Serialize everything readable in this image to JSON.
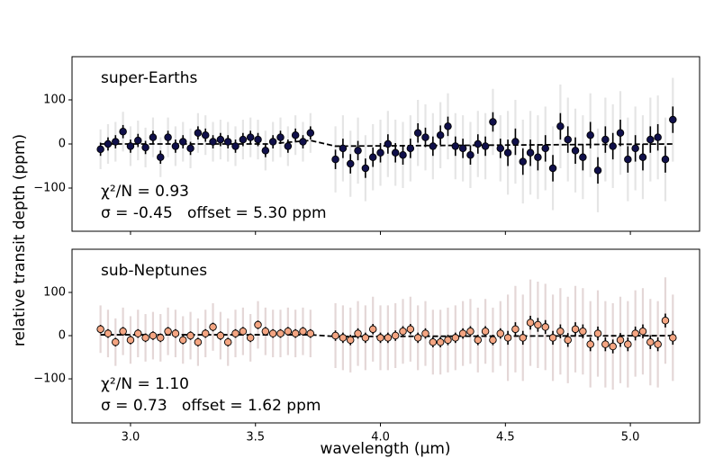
{
  "xlabel": "wavelength (µm)",
  "ylabel": "relative transit depth (ppm)",
  "chart_data": [
    {
      "type": "scatter",
      "label": "super-Earths",
      "stat1": "χ²/N = 0.93",
      "stat2": "σ = -0.45   offset = 5.30 ppm",
      "color": "#10104a",
      "wide_color": "#dddddd",
      "xlim": [
        2.766,
        5.277
      ],
      "ylim": [
        -198,
        198
      ],
      "xticks": [
        {
          "value": 3.0,
          "label": "3.0"
        },
        {
          "value": 3.5,
          "label": "3.5"
        },
        {
          "value": 4.0,
          "label": "4.0"
        },
        {
          "value": 4.5,
          "label": "4.5"
        },
        {
          "value": 5.0,
          "label": "5.0"
        }
      ],
      "yticks": [
        {
          "value": -100,
          "label": "−100"
        },
        0,
        100
      ],
      "x": [
        2.88,
        2.91,
        2.94,
        2.97,
        3.0,
        3.03,
        3.06,
        3.09,
        3.12,
        3.15,
        3.18,
        3.21,
        3.24,
        3.27,
        3.3,
        3.33,
        3.36,
        3.39,
        3.42,
        3.45,
        3.48,
        3.51,
        3.54,
        3.57,
        3.6,
        3.63,
        3.66,
        3.69,
        3.72,
        3.82,
        3.85,
        3.88,
        3.91,
        3.94,
        3.97,
        4.0,
        4.03,
        4.06,
        4.09,
        4.12,
        4.15,
        4.18,
        4.21,
        4.24,
        4.27,
        4.3,
        4.33,
        4.36,
        4.39,
        4.42,
        4.45,
        4.48,
        4.51,
        4.54,
        4.57,
        4.6,
        4.63,
        4.66,
        4.69,
        4.72,
        4.75,
        4.78,
        4.81,
        4.84,
        4.87,
        4.9,
        4.93,
        4.96,
        4.99,
        5.02,
        5.05,
        5.08,
        5.11,
        5.14,
        5.17
      ],
      "values": [
        -12,
        0,
        5,
        28,
        -5,
        8,
        -8,
        15,
        -30,
        15,
        -5,
        5,
        -10,
        25,
        20,
        5,
        10,
        5,
        -5,
        10,
        15,
        10,
        -15,
        5,
        15,
        -5,
        20,
        5,
        25,
        -35,
        -10,
        -45,
        -15,
        -55,
        -30,
        -20,
        0,
        -20,
        -25,
        -10,
        25,
        15,
        -5,
        20,
        40,
        -5,
        -10,
        -25,
        0,
        -5,
        50,
        -10,
        -20,
        5,
        -40,
        -20,
        -30,
        -10,
        -55,
        40,
        10,
        -15,
        -30,
        20,
        -60,
        10,
        -5,
        25,
        -35,
        -10,
        -30,
        10,
        15,
        -35,
        55
      ],
      "errors": [
        15,
        15,
        15,
        15,
        15,
        15,
        15,
        15,
        15,
        15,
        15,
        15,
        15,
        15,
        15,
        15,
        15,
        15,
        15,
        15,
        15,
        15,
        15,
        15,
        15,
        15,
        15,
        15,
        15,
        22,
        22,
        22,
        22,
        22,
        22,
        22,
        22,
        22,
        22,
        22,
        22,
        22,
        22,
        22,
        22,
        22,
        22,
        22,
        22,
        22,
        22,
        22,
        30,
        30,
        30,
        30,
        30,
        30,
        30,
        30,
        30,
        30,
        30,
        30,
        30,
        30,
        30,
        30,
        30,
        30,
        30,
        30,
        30,
        30,
        30
      ],
      "wide_errors": [
        45,
        45,
        45,
        45,
        45,
        45,
        45,
        45,
        45,
        45,
        45,
        45,
        45,
        45,
        45,
        45,
        45,
        45,
        45,
        45,
        45,
        45,
        45,
        45,
        45,
        45,
        45,
        45,
        45,
        75,
        75,
        75,
        75,
        75,
        75,
        75,
        75,
        75,
        75,
        75,
        75,
        75,
        75,
        75,
        75,
        75,
        75,
        75,
        75,
        75,
        75,
        75,
        95,
        95,
        95,
        95,
        95,
        95,
        95,
        95,
        95,
        95,
        95,
        95,
        95,
        95,
        95,
        95,
        95,
        95,
        95,
        95,
        95,
        95,
        95
      ],
      "model_x": [
        2.88,
        3.55,
        3.72,
        3.82,
        5.17
      ],
      "model_y": [
        0,
        0,
        8,
        -5,
        0
      ]
    },
    {
      "type": "scatter",
      "label": "sub-Neptunes",
      "stat1": "χ²/N = 1.10",
      "stat2": "σ = 0.73   offset = 1.62 ppm",
      "color": "#f4a582",
      "wide_color": "#dccaca",
      "xlim": [
        2.766,
        5.277
      ],
      "ylim": [
        -202,
        200
      ],
      "xticks": [
        {
          "value": 3.0,
          "label": "3.0"
        },
        {
          "value": 3.5,
          "label": "3.5"
        },
        {
          "value": 4.0,
          "label": "4.0"
        },
        {
          "value": 4.5,
          "label": "4.5"
        },
        {
          "value": 5.0,
          "label": "5.0"
        }
      ],
      "yticks": [
        {
          "value": -100,
          "label": "−100"
        },
        0,
        100
      ],
      "x": [
        2.88,
        2.91,
        2.94,
        2.97,
        3.0,
        3.03,
        3.06,
        3.09,
        3.12,
        3.15,
        3.18,
        3.21,
        3.24,
        3.27,
        3.3,
        3.33,
        3.36,
        3.39,
        3.42,
        3.45,
        3.48,
        3.51,
        3.54,
        3.57,
        3.6,
        3.63,
        3.66,
        3.69,
        3.72,
        3.82,
        3.85,
        3.88,
        3.91,
        3.94,
        3.97,
        4.0,
        4.03,
        4.06,
        4.09,
        4.12,
        4.15,
        4.18,
        4.21,
        4.24,
        4.27,
        4.3,
        4.33,
        4.36,
        4.39,
        4.42,
        4.45,
        4.48,
        4.51,
        4.54,
        4.57,
        4.6,
        4.63,
        4.66,
        4.69,
        4.72,
        4.75,
        4.78,
        4.81,
        4.84,
        4.87,
        4.9,
        4.93,
        4.96,
        4.99,
        5.02,
        5.05,
        5.08,
        5.11,
        5.14,
        5.17
      ],
      "values": [
        15,
        5,
        -15,
        10,
        -10,
        5,
        -5,
        0,
        -5,
        10,
        5,
        -10,
        0,
        -15,
        5,
        20,
        0,
        -15,
        5,
        10,
        -5,
        25,
        10,
        5,
        5,
        10,
        5,
        10,
        5,
        0,
        -5,
        -10,
        5,
        -5,
        15,
        -5,
        -5,
        0,
        10,
        15,
        -5,
        5,
        -15,
        -15,
        -10,
        -5,
        5,
        10,
        -10,
        10,
        -10,
        5,
        -5,
        15,
        -5,
        30,
        25,
        20,
        -5,
        10,
        -10,
        15,
        10,
        -20,
        5,
        -20,
        -25,
        -10,
        -20,
        5,
        10,
        -15,
        -20,
        35,
        -5
      ],
      "errors": [
        10,
        10,
        10,
        10,
        10,
        10,
        10,
        10,
        10,
        10,
        10,
        10,
        10,
        10,
        10,
        10,
        10,
        10,
        10,
        10,
        10,
        10,
        10,
        10,
        10,
        10,
        10,
        10,
        10,
        12,
        12,
        12,
        12,
        12,
        12,
        12,
        12,
        12,
        12,
        12,
        12,
        12,
        12,
        12,
        12,
        12,
        12,
        12,
        12,
        12,
        12,
        12,
        16,
        16,
        16,
        16,
        16,
        16,
        16,
        16,
        16,
        16,
        16,
        16,
        16,
        16,
        16,
        16,
        16,
        16,
        16,
        16,
        16,
        16,
        16
      ],
      "wide_errors": [
        55,
        55,
        55,
        55,
        55,
        55,
        55,
        55,
        55,
        55,
        55,
        55,
        55,
        55,
        55,
        55,
        55,
        55,
        55,
        55,
        55,
        55,
        55,
        55,
        55,
        55,
        55,
        55,
        55,
        75,
        75,
        75,
        75,
        75,
        75,
        75,
        75,
        75,
        75,
        75,
        75,
        75,
        75,
        75,
        75,
        75,
        75,
        75,
        75,
        75,
        75,
        75,
        100,
        100,
        100,
        100,
        100,
        100,
        100,
        100,
        100,
        100,
        100,
        100,
        100,
        100,
        100,
        100,
        100,
        100,
        100,
        100,
        100,
        100,
        100
      ],
      "model_x": [
        2.88,
        3.72,
        3.82,
        5.17
      ],
      "model_y": [
        2,
        2,
        -2,
        0
      ]
    }
  ]
}
